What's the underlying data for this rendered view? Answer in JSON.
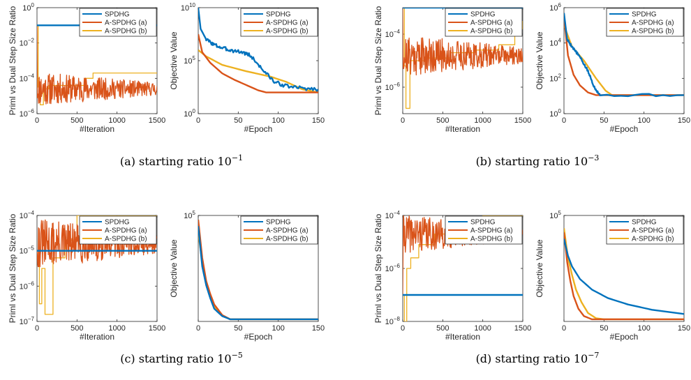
{
  "colors": {
    "SPDHG": "#0072BD",
    "A-SPDHG (a)": "#D95319",
    "A-SPDHG (b)": "#EDB120",
    "axis": "#262626"
  },
  "captions": [
    {
      "label": "(a) starting ratio 10",
      "exponent": "−1"
    },
    {
      "label": "(b) starting ratio 10",
      "exponent": "−3"
    },
    {
      "label": "(c) starting ratio 10",
      "exponent": "−5"
    },
    {
      "label": "(d) starting ratio 10",
      "exponent": "−7"
    }
  ],
  "chart_data": [
    {
      "panel": "a-left",
      "type": "line",
      "xlabel": "#Iteration",
      "ylabel": "Priml vs Dual Step Size Ratio",
      "xlim": [
        0,
        1500
      ],
      "ylim_exp": [
        -6,
        0
      ],
      "yscale": "log",
      "xticks": [
        0,
        500,
        1000,
        1500
      ],
      "yticks": [
        {
          "base": "10",
          "exp": "0",
          "v": 0
        },
        {
          "base": "10",
          "exp": "-2",
          "v": -2
        },
        {
          "base": "10",
          "exp": "-4",
          "v": -4
        },
        {
          "base": "10",
          "exp": "-6",
          "v": -6
        }
      ],
      "legend": "top-right",
      "series": [
        {
          "name": "SPDHG",
          "kind": "const",
          "log10": -1
        },
        {
          "name": "A-SPDHG (a)",
          "kind": "noisy",
          "start": -1,
          "mean": -4.6,
          "amp": 0.6,
          "seed": 11
        },
        {
          "name": "A-SPDHG (b)",
          "kind": "steps",
          "pts": [
            [
              0,
              -1
            ],
            [
              15,
              -4.5
            ],
            [
              40,
              -5.5
            ],
            [
              80,
              -4.6
            ],
            [
              150,
              -4.4
            ],
            [
              600,
              -4.0
            ],
            [
              700,
              -3.7
            ],
            [
              1500,
              -3.7
            ]
          ]
        }
      ]
    },
    {
      "panel": "a-right",
      "type": "line",
      "xlabel": "#Epoch",
      "ylabel": "Objective Value",
      "xlim": [
        0,
        150
      ],
      "ylim_exp": [
        0,
        10
      ],
      "yscale": "log",
      "xticks": [
        0,
        50,
        100,
        150
      ],
      "yticks": [
        {
          "base": "10",
          "exp": "0",
          "v": 0
        },
        {
          "base": "10",
          "exp": "5",
          "v": 5
        },
        {
          "base": "10",
          "exp": "10",
          "v": 10
        }
      ],
      "legend": "top-right",
      "series": [
        {
          "name": "SPDHG",
          "kind": "curve",
          "pts": [
            [
              0,
              10
            ],
            [
              3,
              8
            ],
            [
              10,
              7
            ],
            [
              20,
              6.5
            ],
            [
              30,
              6.2
            ],
            [
              40,
              6.0
            ],
            [
              55,
              5.8
            ],
            [
              65,
              5.5
            ],
            [
              80,
              4.2
            ],
            [
              95,
              3.0
            ],
            [
              110,
              2.6
            ],
            [
              130,
              2.4
            ],
            [
              150,
              2.3
            ]
          ],
          "noise": 0.35,
          "seed": 3
        },
        {
          "name": "A-SPDHG (a)",
          "kind": "curve",
          "pts": [
            [
              0,
              7.5
            ],
            [
              5,
              5.8
            ],
            [
              15,
              4.8
            ],
            [
              30,
              3.8
            ],
            [
              45,
              3.2
            ],
            [
              60,
              2.7
            ],
            [
              75,
              2.2
            ],
            [
              85,
              2.0
            ],
            [
              150,
              2.0
            ]
          ]
        },
        {
          "name": "A-SPDHG (b)",
          "kind": "curve",
          "pts": [
            [
              0,
              6.0
            ],
            [
              10,
              5.4
            ],
            [
              30,
              4.6
            ],
            [
              60,
              4.0
            ],
            [
              90,
              3.5
            ],
            [
              110,
              3.0
            ],
            [
              130,
              2.3
            ],
            [
              150,
              2.0
            ]
          ]
        }
      ]
    },
    {
      "panel": "b-left",
      "type": "line",
      "xlabel": "#Iteration",
      "ylabel": "Priml vs Dual Step Size Ratio",
      "xlim": [
        0,
        1500
      ],
      "ylim_exp": [
        -7,
        -3
      ],
      "yscale": "log",
      "xticks": [
        0,
        500,
        1000,
        1500
      ],
      "yticks": [
        {
          "base": "10",
          "exp": "-4",
          "v": -4
        },
        {
          "base": "10",
          "exp": "-6",
          "v": -6
        }
      ],
      "legend": "top-right",
      "series": [
        {
          "name": "SPDHG",
          "kind": "const",
          "log10": -3
        },
        {
          "name": "A-SPDHG (a)",
          "kind": "noisy",
          "start": -3,
          "mean": -4.8,
          "amp": 0.5,
          "seed": 21
        },
        {
          "name": "A-SPDHG (b)",
          "kind": "steps",
          "pts": [
            [
              0,
              -3
            ],
            [
              20,
              -5.2
            ],
            [
              40,
              -6.8
            ],
            [
              90,
              -5.0
            ],
            [
              300,
              -4.9
            ],
            [
              600,
              -4.7
            ],
            [
              900,
              -4.6
            ],
            [
              1200,
              -4.4
            ],
            [
              1400,
              -3.8
            ],
            [
              1500,
              -3.5
            ]
          ]
        }
      ]
    },
    {
      "panel": "b-right",
      "type": "line",
      "xlabel": "#Epoch",
      "ylabel": "Objective Value",
      "xlim": [
        0,
        150
      ],
      "ylim_exp": [
        0,
        6
      ],
      "yscale": "log",
      "xticks": [
        0,
        50,
        100,
        150
      ],
      "yticks": [
        {
          "base": "10",
          "exp": "0",
          "v": 0
        },
        {
          "base": "10",
          "exp": "2",
          "v": 2
        },
        {
          "base": "10",
          "exp": "4",
          "v": 4
        },
        {
          "base": "10",
          "exp": "6",
          "v": 6
        }
      ],
      "legend": "top-right",
      "series": [
        {
          "name": "SPDHG",
          "kind": "curve",
          "pts": [
            [
              0,
              5.7
            ],
            [
              4,
              4.2
            ],
            [
              10,
              3.8
            ],
            [
              20,
              3.2
            ],
            [
              30,
              2.4
            ],
            [
              38,
              1.5
            ],
            [
              45,
              1.05
            ],
            [
              150,
              1.05
            ]
          ],
          "noise": 0.15,
          "seed": 5
        },
        {
          "name": "A-SPDHG (a)",
          "kind": "curve",
          "pts": [
            [
              0,
              5.5
            ],
            [
              5,
              3.3
            ],
            [
              12,
              2.2
            ],
            [
              20,
              1.6
            ],
            [
              30,
              1.2
            ],
            [
              40,
              1.05
            ],
            [
              150,
              1.05
            ]
          ]
        },
        {
          "name": "A-SPDHG (b)",
          "kind": "curve",
          "pts": [
            [
              0,
              5.0
            ],
            [
              10,
              3.8
            ],
            [
              25,
              3.0
            ],
            [
              40,
              2.0
            ],
            [
              52,
              1.3
            ],
            [
              60,
              1.05
            ],
            [
              150,
              1.05
            ]
          ]
        }
      ]
    },
    {
      "panel": "c-left",
      "type": "line",
      "xlabel": "#Iteration",
      "ylabel": "Priml vs Dual Step Size Ratio",
      "xlim": [
        0,
        1500
      ],
      "ylim_exp": [
        -7,
        -4
      ],
      "yscale": "log",
      "xticks": [
        0,
        500,
        1000,
        1500
      ],
      "yticks": [
        {
          "base": "10",
          "exp": "-4",
          "v": -4
        },
        {
          "base": "10",
          "exp": "-5",
          "v": -5
        },
        {
          "base": "10",
          "exp": "-6",
          "v": -6
        },
        {
          "base": "10",
          "exp": "-7",
          "v": -7
        }
      ],
      "legend": "top-right",
      "series": [
        {
          "name": "SPDHG",
          "kind": "const",
          "log10": -5
        },
        {
          "name": "A-SPDHG (a)",
          "kind": "noisy",
          "start": -5,
          "mean": -4.8,
          "amp": 0.45,
          "seed": 31
        },
        {
          "name": "A-SPDHG (b)",
          "kind": "steps",
          "pts": [
            [
              0,
              -5
            ],
            [
              30,
              -6.5
            ],
            [
              60,
              -5.5
            ],
            [
              100,
              -6.8
            ],
            [
              200,
              -5.2
            ],
            [
              350,
              -4.7
            ],
            [
              500,
              -4.0
            ],
            [
              1500,
              -4.0
            ]
          ]
        }
      ]
    },
    {
      "panel": "c-right",
      "type": "line",
      "xlabel": "#Epoch",
      "ylabel": "Objective Value",
      "xlim": [
        0,
        150
      ],
      "ylim_exp": [
        0,
        5
      ],
      "yscale": "log",
      "xticks": [
        0,
        50,
        100,
        150
      ],
      "yticks": [
        {
          "base": "10",
          "exp": "5",
          "v": 5
        }
      ],
      "legend": "top-right",
      "series": [
        {
          "name": "SPDHG",
          "kind": "curve",
          "pts": [
            [
              0,
              4.5
            ],
            [
              5,
              2.6
            ],
            [
              10,
              1.7
            ],
            [
              15,
              1.1
            ],
            [
              20,
              0.6
            ],
            [
              30,
              0.25
            ],
            [
              40,
              0.1
            ],
            [
              150,
              0.1
            ]
          ]
        },
        {
          "name": "A-SPDHG (a)",
          "kind": "curve",
          "pts": [
            [
              0,
              4.8
            ],
            [
              5,
              3.0
            ],
            [
              10,
              1.9
            ],
            [
              15,
              1.3
            ],
            [
              20,
              0.8
            ],
            [
              30,
              0.3
            ],
            [
              40,
              0.1
            ],
            [
              150,
              0.1
            ]
          ]
        },
        {
          "name": "A-SPDHG (b)",
          "kind": "curve",
          "pts": [
            [
              0,
              4.2
            ],
            [
              5,
              2.8
            ],
            [
              10,
              1.8
            ],
            [
              15,
              1.2
            ],
            [
              20,
              0.7
            ],
            [
              30,
              0.28
            ],
            [
              40,
              0.1
            ],
            [
              150,
              0.1
            ]
          ]
        }
      ]
    },
    {
      "panel": "d-left",
      "type": "line",
      "xlabel": "#Iteration",
      "ylabel": "Priml vs Dual Step Size Ratio",
      "xlim": [
        0,
        1500
      ],
      "ylim_exp": [
        -8,
        -4
      ],
      "yscale": "log",
      "xticks": [
        0,
        500,
        1000,
        1500
      ],
      "yticks": [
        {
          "base": "10",
          "exp": "-4",
          "v": -4
        },
        {
          "base": "10",
          "exp": "-6",
          "v": -6
        },
        {
          "base": "10",
          "exp": "-8",
          "v": -8
        }
      ],
      "legend": "top-right",
      "series": [
        {
          "name": "SPDHG",
          "kind": "const",
          "log10": -7
        },
        {
          "name": "A-SPDHG (a)",
          "kind": "noisy",
          "start": -7,
          "mean": -4.7,
          "amp": 0.45,
          "seed": 41
        },
        {
          "name": "A-SPDHG (b)",
          "kind": "steps",
          "pts": [
            [
              0,
              -7
            ],
            [
              20,
              -8.0
            ],
            [
              50,
              -6.0
            ],
            [
              100,
              -5.6
            ],
            [
              200,
              -5.1
            ],
            [
              400,
              -4.7
            ],
            [
              600,
              -4.4
            ],
            [
              800,
              -4.1
            ],
            [
              1000,
              -4.0
            ],
            [
              1500,
              -4.0
            ]
          ]
        }
      ]
    },
    {
      "panel": "d-right",
      "type": "line",
      "xlabel": "#Epoch",
      "ylabel": "Objective Value",
      "xlim": [
        0,
        150
      ],
      "ylim_exp": [
        0,
        5
      ],
      "yscale": "log",
      "xticks": [
        0,
        50,
        100,
        150
      ],
      "yticks": [
        {
          "base": "10",
          "exp": "5",
          "v": 5
        }
      ],
      "legend": "top-right",
      "series": [
        {
          "name": "SPDHG",
          "kind": "curve",
          "pts": [
            [
              0,
              3.9
            ],
            [
              5,
              3.1
            ],
            [
              10,
              2.6
            ],
            [
              20,
              2.0
            ],
            [
              35,
              1.5
            ],
            [
              55,
              1.1
            ],
            [
              80,
              0.8
            ],
            [
              110,
              0.55
            ],
            [
              150,
              0.35
            ]
          ]
        },
        {
          "name": "A-SPDHG (a)",
          "kind": "curve",
          "pts": [
            [
              0,
              4.2
            ],
            [
              4,
              2.8
            ],
            [
              8,
              1.9
            ],
            [
              12,
              1.2
            ],
            [
              18,
              0.6
            ],
            [
              25,
              0.25
            ],
            [
              35,
              0.1
            ],
            [
              150,
              0.1
            ]
          ]
        },
        {
          "name": "A-SPDHG (b)",
          "kind": "curve",
          "pts": [
            [
              0,
              4.4
            ],
            [
              5,
              3.0
            ],
            [
              10,
              2.2
            ],
            [
              15,
              1.5
            ],
            [
              22,
              0.9
            ],
            [
              30,
              0.4
            ],
            [
              40,
              0.15
            ],
            [
              50,
              0.1
            ],
            [
              150,
              0.1
            ]
          ]
        }
      ]
    }
  ]
}
